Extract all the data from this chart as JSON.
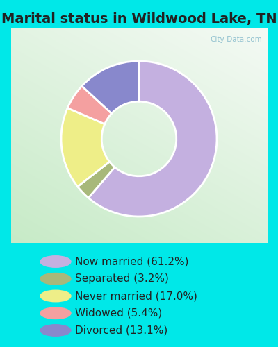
{
  "title": "Marital status in Wildwood Lake, TN",
  "slices": [
    {
      "label": "Now married (61.2%)",
      "value": 61.2,
      "color": "#C4B0E0"
    },
    {
      "label": "Separated (3.2%)",
      "value": 3.2,
      "color": "#A8B87A"
    },
    {
      "label": "Never married (17.0%)",
      "value": 17.0,
      "color": "#EEEE88"
    },
    {
      "label": "Widowed (5.4%)",
      "value": 5.4,
      "color": "#F4A0A0"
    },
    {
      "label": "Divorced (13.1%)",
      "value": 13.1,
      "color": "#8888CC"
    }
  ],
  "cyan_bg": "#00E8E8",
  "chart_box_color_tl": "#D8F0DC",
  "chart_box_color_br": "#F0FAF0",
  "title_color": "#222222",
  "watermark": "City-Data.com",
  "start_angle": 90,
  "donut_width": 0.52,
  "title_fontsize": 14,
  "legend_fontsize": 11
}
